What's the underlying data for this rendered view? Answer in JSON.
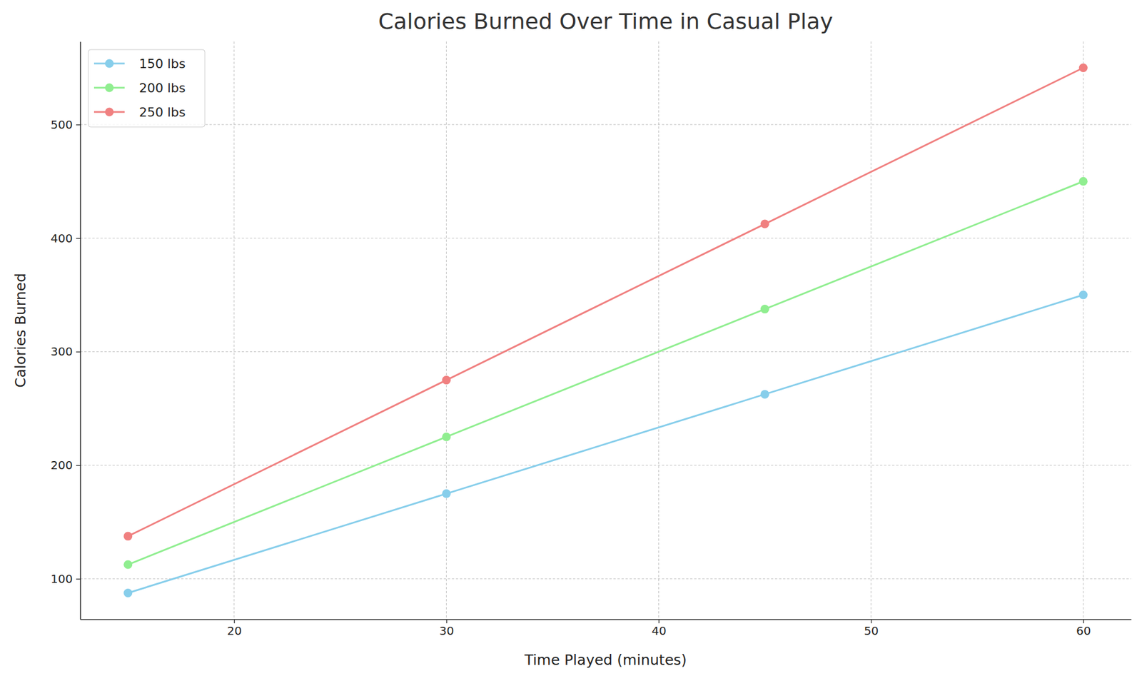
{
  "chart_data": {
    "type": "line",
    "title": "Calories Burned Over Time in Casual Play",
    "x_label": "Time Played (minutes)",
    "y_label": "Calories Burned",
    "x": [
      15,
      30,
      45,
      60
    ],
    "series": [
      {
        "name": "150 lbs",
        "color": "#87ceeb",
        "marker": "circle",
        "values": [
          87.5,
          175,
          262.5,
          350
        ]
      },
      {
        "name": "200 lbs",
        "color": "#90ee90",
        "marker": "circle",
        "values": [
          112.5,
          225,
          337.5,
          450
        ]
      },
      {
        "name": "250 lbs",
        "color": "#f08080",
        "marker": "circle",
        "values": [
          137.5,
          275,
          412.5,
          550
        ]
      }
    ],
    "xlim": [
      12.75,
      62.25
    ],
    "xticks": [
      20,
      30,
      40,
      50,
      60
    ],
    "ylim": [
      64.375,
      573.125
    ],
    "yticks": [
      100,
      200,
      300,
      400,
      500
    ],
    "grid": true,
    "legend": "upper left"
  }
}
